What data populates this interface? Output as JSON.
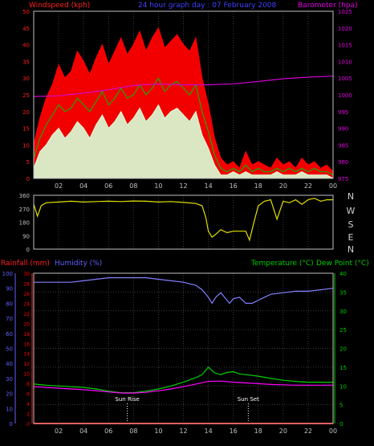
{
  "colors": {
    "background": "#000000",
    "plot_border": "#c0c0c0",
    "grid": "#3a3a3a",
    "tick_text": "#c0c0c0",
    "wind_gust": "#ff0000",
    "wind_avg": "#00c000",
    "wind_speed": "#d8ffd8",
    "barometer": "#d000d0",
    "direction": "#e0e000",
    "rain": "#ff0000",
    "humidity": "#8080ff",
    "temperature": "#00d000",
    "dewpoint": "#ff00ff",
    "left_axis": "#ff2020",
    "right_axis": "#e000e0",
    "title": "#4040ff",
    "dir_letters": "#d0d0d0",
    "temp_axis": "#00cc00",
    "humidity_axis": "#6060ff"
  },
  "labels": {
    "windspeed": "Windspeed (kph)",
    "title": "24 hour graph day : 07 February 2008",
    "barometer": "Barometer (hpa)",
    "rainfall": "Rainfall (mm)",
    "humidity": "Humidity (%)",
    "temperature": "Temperature (°C)",
    "dewpoint": "Dew Point (°C)",
    "sunrise": "Sun Rise",
    "sunset": "Sun Set",
    "directions": [
      "N",
      "W",
      "S",
      "E",
      "N"
    ]
  },
  "chart_data": [
    {
      "type": "line",
      "title": "24 hour graph day : 07 February 2008",
      "x_ticks": [
        "02",
        "04",
        "06",
        "08",
        "10",
        "12",
        "14",
        "16",
        "18",
        "20",
        "22",
        "00"
      ],
      "x_range": [
        0,
        24
      ],
      "ylabel_left": "Windspeed (kph)",
      "ylim_left": [
        0,
        50
      ],
      "y_ticks_left": [
        0,
        5,
        10,
        15,
        20,
        25,
        30,
        35,
        40,
        45,
        50
      ],
      "ylabel_right": "Barometer (hpa)",
      "ylim_right": [
        975,
        1025
      ],
      "y_ticks_right": [
        975,
        980,
        985,
        990,
        995,
        1000,
        1005,
        1010,
        1015,
        1020,
        1025
      ],
      "series": [
        {
          "role": "gust",
          "axis": "left",
          "x": [
            0,
            0.5,
            1,
            1.5,
            2,
            2.5,
            3,
            3.5,
            4,
            4.5,
            5,
            5.5,
            6,
            6.5,
            7,
            7.5,
            8,
            8.5,
            9,
            9.5,
            10,
            10.5,
            11,
            11.5,
            12,
            12.5,
            13,
            13.5,
            14,
            14.5,
            15,
            15.5,
            16,
            16.5,
            17,
            17.5,
            18,
            18.5,
            19,
            19.5,
            20,
            20.5,
            21,
            21.5,
            22,
            22.5,
            23,
            23.5,
            24
          ],
          "values": [
            10,
            18,
            24,
            28,
            34,
            30,
            32,
            38,
            35,
            31,
            36,
            40,
            34,
            38,
            42,
            37,
            40,
            44,
            38,
            42,
            45,
            39,
            41,
            43,
            40,
            38,
            42,
            30,
            22,
            12,
            6,
            4,
            5,
            3,
            8,
            4,
            5,
            4,
            3,
            6,
            4,
            5,
            3,
            6,
            4,
            5,
            3,
            4,
            2
          ]
        },
        {
          "role": "average",
          "axis": "left",
          "x": [
            0,
            0.5,
            1,
            1.5,
            2,
            2.5,
            3,
            3.5,
            4,
            4.5,
            5,
            5.5,
            6,
            6.5,
            7,
            7.5,
            8,
            8.5,
            9,
            9.5,
            10,
            10.5,
            11,
            11.5,
            12,
            12.5,
            13,
            13.5,
            14,
            14.5,
            15,
            15.5,
            16,
            16.5,
            17,
            17.5,
            18,
            18.5,
            19,
            19.5,
            20,
            20.5,
            21,
            21.5,
            22,
            22.5,
            23,
            23.5,
            24
          ],
          "values": [
            6,
            12,
            16,
            19,
            22,
            20,
            21,
            24,
            22,
            20,
            23,
            26,
            22,
            24,
            27,
            24,
            25,
            28,
            25,
            27,
            30,
            26,
            28,
            29,
            27,
            25,
            28,
            20,
            14,
            7,
            3,
            2,
            3,
            2,
            4,
            2,
            3,
            2,
            2,
            3,
            2,
            3,
            2,
            3,
            2,
            3,
            2,
            2,
            1
          ]
        },
        {
          "role": "speed",
          "axis": "left",
          "x": [
            0,
            0.5,
            1,
            1.5,
            2,
            2.5,
            3,
            3.5,
            4,
            4.5,
            5,
            5.5,
            6,
            6.5,
            7,
            7.5,
            8,
            8.5,
            9,
            9.5,
            10,
            10.5,
            11,
            11.5,
            12,
            12.5,
            13,
            13.5,
            14,
            14.5,
            15,
            15.5,
            16,
            16.5,
            17,
            17.5,
            18,
            18.5,
            19,
            19.5,
            20,
            20.5,
            21,
            21.5,
            22,
            22.5,
            23,
            23.5,
            24
          ],
          "values": [
            3,
            8,
            10,
            13,
            15,
            12,
            14,
            17,
            15,
            12,
            16,
            19,
            15,
            17,
            20,
            16,
            18,
            21,
            17,
            19,
            22,
            18,
            20,
            21,
            19,
            17,
            20,
            13,
            9,
            4,
            1,
            1,
            2,
            1,
            2,
            1,
            1,
            1,
            1,
            2,
            1,
            1,
            1,
            2,
            1,
            1,
            1,
            1,
            0
          ]
        },
        {
          "role": "barometer",
          "axis": "right",
          "x": [
            0,
            2,
            4,
            6,
            8,
            10,
            12,
            14,
            16,
            18,
            20,
            22,
            24
          ],
          "values": [
            999.5,
            999.7,
            1000.5,
            1001.5,
            1002.8,
            1003.2,
            1003.0,
            1003.0,
            1003.3,
            1004.0,
            1004.8,
            1005.3,
            1005.6
          ]
        }
      ]
    },
    {
      "type": "line",
      "x_ticks": [
        "02",
        "04",
        "06",
        "08",
        "10",
        "12",
        "14",
        "16",
        "18",
        "20",
        "22",
        "00"
      ],
      "x_range": [
        0,
        24
      ],
      "ylim": [
        0,
        360
      ],
      "y_ticks": [
        0,
        90,
        180,
        270,
        360
      ],
      "series": [
        {
          "role": "wind_direction",
          "x": [
            0,
            0.3,
            0.6,
            1,
            2,
            3,
            4,
            5,
            6,
            7,
            8,
            9,
            10,
            11,
            12,
            13,
            13.5,
            13.8,
            14,
            14.3,
            14.6,
            15,
            15.5,
            16,
            17,
            17.3,
            17.6,
            18,
            18.5,
            19,
            19.5,
            20,
            20.5,
            21,
            21.5,
            22,
            22.5,
            23,
            23.5,
            24
          ],
          "values": [
            300,
            220,
            290,
            310,
            315,
            320,
            315,
            318,
            320,
            318,
            322,
            320,
            315,
            318,
            312,
            305,
            290,
            210,
            120,
            80,
            100,
            130,
            110,
            120,
            120,
            60,
            160,
            290,
            320,
            330,
            200,
            320,
            310,
            330,
            300,
            330,
            340,
            320,
            330,
            330
          ]
        }
      ]
    },
    {
      "type": "line",
      "x_ticks": [
        "02",
        "04",
        "06",
        "08",
        "10",
        "12",
        "14",
        "16",
        "18",
        "20",
        "22",
        "00"
      ],
      "x_range": [
        0,
        24
      ],
      "ylabel_left": "Rainfall (mm)",
      "ylim_rain": [
        0,
        30
      ],
      "y_ticks_rain": [
        0,
        2,
        4,
        6,
        8,
        10,
        12,
        14,
        16,
        18,
        20,
        22,
        24,
        26,
        28,
        30
      ],
      "ylabel_humidity": "Humidity (%)",
      "ylim_humidity": [
        0,
        100
      ],
      "y_ticks_humidity": [
        0,
        10,
        20,
        30,
        40,
        50,
        60,
        70,
        80,
        90,
        100
      ],
      "ylabel_right": "Temperature (°C)Dew Point (°C)",
      "ylim_right": [
        0,
        40
      ],
      "y_ticks_right": [
        0,
        5,
        10,
        15,
        20,
        25,
        30,
        35,
        40
      ],
      "sunrise_x": 7.5,
      "sunset_x": 17.2,
      "series": [
        {
          "role": "rainfall",
          "axis": "rain",
          "x": [
            0,
            24
          ],
          "values": [
            0,
            0
          ]
        },
        {
          "role": "humidity",
          "axis": "humidity",
          "x": [
            0,
            1,
            2,
            3,
            4,
            5,
            6,
            7,
            8,
            9,
            10,
            11,
            12,
            13,
            13.5,
            14,
            14.3,
            14.6,
            15,
            15.4,
            15.7,
            16,
            16.5,
            17,
            17.5,
            18,
            18.5,
            19,
            20,
            21,
            22,
            23,
            24
          ],
          "values": [
            94,
            94,
            94,
            94,
            95,
            96,
            97,
            97,
            97,
            97,
            96,
            95,
            94,
            92,
            89,
            84,
            80,
            84,
            87,
            83,
            80,
            83,
            84,
            80,
            80,
            82,
            84,
            86,
            87,
            88,
            88,
            89,
            90
          ]
        },
        {
          "role": "temperature",
          "axis": "right",
          "x": [
            0,
            1,
            2,
            3,
            4,
            5,
            6,
            7,
            8,
            9,
            10,
            11,
            12,
            13,
            13.5,
            14,
            14.5,
            15,
            15.5,
            16,
            16.5,
            17,
            18,
            19,
            20,
            21,
            22,
            23,
            24
          ],
          "values": [
            10.5,
            10.2,
            10.0,
            9.8,
            9.6,
            9.2,
            8.6,
            8.2,
            8.2,
            8.6,
            9.2,
            10.0,
            11.0,
            12.2,
            13.0,
            15.0,
            13.5,
            13.0,
            13.6,
            13.8,
            13.2,
            13.0,
            12.6,
            12.0,
            11.5,
            11.2,
            11.0,
            11.0,
            11.0
          ]
        },
        {
          "role": "dewpoint",
          "axis": "right",
          "x": [
            0,
            2,
            4,
            6,
            7,
            8,
            9,
            10,
            11,
            12,
            13,
            14,
            15,
            16,
            17,
            18,
            19,
            20,
            21,
            22,
            23,
            24
          ],
          "values": [
            9.8,
            9.4,
            9.0,
            8.4,
            8.1,
            8.1,
            8.3,
            8.7,
            9.2,
            9.8,
            10.5,
            11.2,
            11.3,
            11.0,
            10.8,
            10.6,
            10.4,
            10.3,
            10.2,
            10.2,
            10.2,
            10.2
          ]
        }
      ]
    }
  ]
}
